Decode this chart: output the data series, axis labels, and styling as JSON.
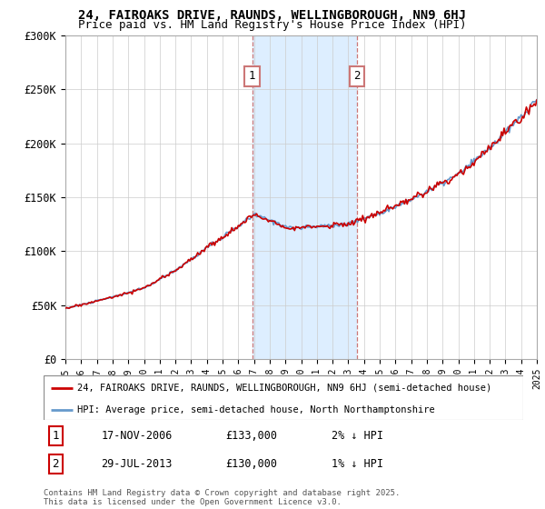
{
  "title_line1": "24, FAIROAKS DRIVE, RAUNDS, WELLINGBOROUGH, NN9 6HJ",
  "title_line2": "Price paid vs. HM Land Registry's House Price Index (HPI)",
  "ylim": [
    0,
    300000
  ],
  "yticks": [
    0,
    50000,
    100000,
    150000,
    200000,
    250000,
    300000
  ],
  "ytick_labels": [
    "£0",
    "£50K",
    "£100K",
    "£150K",
    "£200K",
    "£250K",
    "£300K"
  ],
  "x_start_year": 1995,
  "x_end_year": 2025,
  "sale1_date": 2006.88,
  "sale1_price": 133000,
  "sale1_label": "1",
  "sale2_date": 2013.57,
  "sale2_price": 130000,
  "sale2_label": "2",
  "legend_line1": "24, FAIROAKS DRIVE, RAUNDS, WELLINGBOROUGH, NN9 6HJ (semi-detached house)",
  "legend_line2": "HPI: Average price, semi-detached house, North Northamptonshire",
  "table_row1": [
    "1",
    "17-NOV-2006",
    "£133,000",
    "2% ↓ HPI"
  ],
  "table_row2": [
    "2",
    "29-JUL-2013",
    "£130,000",
    "1% ↓ HPI"
  ],
  "footer": "Contains HM Land Registry data © Crown copyright and database right 2025.\nThis data is licensed under the Open Government Licence v3.0.",
  "hpi_color": "#6699cc",
  "price_color": "#cc0000",
  "shade_color": "#ddeeff",
  "background_color": "#ffffff",
  "grid_color": "#cccccc"
}
